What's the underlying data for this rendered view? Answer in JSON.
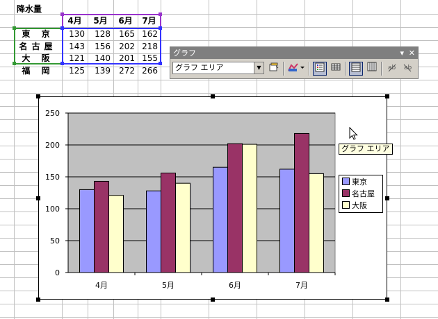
{
  "sheet": {
    "title": "降水量",
    "months": [
      "4月",
      "5月",
      "6月",
      "7月"
    ],
    "rows": [
      {
        "city": "東 京",
        "values": [
          "130",
          "128",
          "165",
          "162"
        ]
      },
      {
        "city": "名古屋",
        "values": [
          "143",
          "156",
          "202",
          "218"
        ]
      },
      {
        "city": "大 阪",
        "values": [
          "121",
          "140",
          "201",
          "155"
        ]
      },
      {
        "city": "福 岡",
        "values": [
          "125",
          "139",
          "272",
          "266"
        ]
      }
    ]
  },
  "toolbar": {
    "title": "グラフ",
    "close_glyph": "✕",
    "menu_glyph": "▾",
    "combo_value": "グラフ エリア",
    "buttons": [
      "format-icon",
      "chart-type-icon",
      "legend-icon",
      "data-table-icon",
      "by-row-icon",
      "by-column-icon",
      "angle-down-icon",
      "angle-up-icon"
    ]
  },
  "tooltip": "グラフ エリア",
  "chart_data": {
    "type": "bar",
    "categories": [
      "4月",
      "5月",
      "6月",
      "7月"
    ],
    "series": [
      {
        "name": "東京",
        "values": [
          130,
          128,
          165,
          162
        ],
        "color": "#9999ff"
      },
      {
        "name": "名古屋",
        "values": [
          143,
          156,
          202,
          218
        ],
        "color": "#993366"
      },
      {
        "name": "大阪",
        "values": [
          121,
          140,
          201,
          155
        ],
        "color": "#ffffcc"
      }
    ],
    "ylim": [
      0,
      250
    ],
    "yticks": [
      "0",
      "50",
      "100",
      "150",
      "200",
      "250"
    ],
    "plot_background": "#c0c0c0",
    "grid": true,
    "legend": "right"
  },
  "colors": {
    "selection_purple": "#9933cc",
    "selection_blue": "#3333ff",
    "selection_green": "#339933"
  }
}
